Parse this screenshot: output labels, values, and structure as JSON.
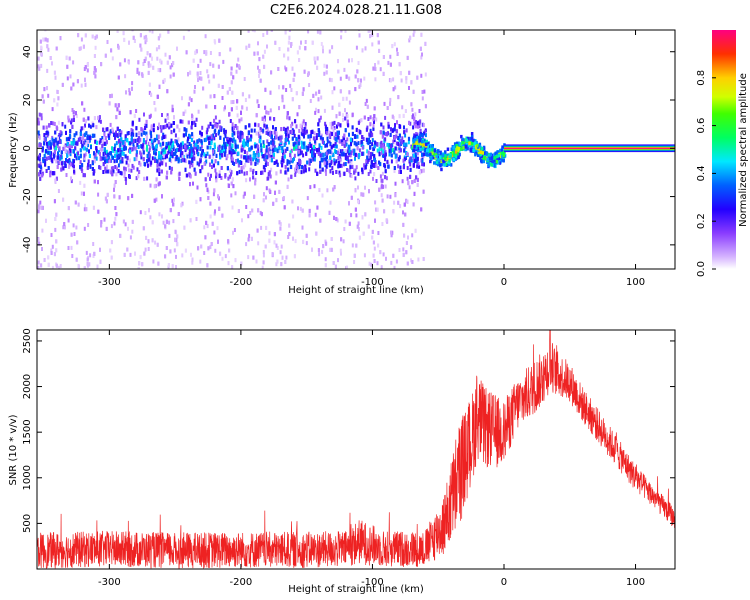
{
  "title": "C2E6.2024.028.21.11.G08",
  "chart_data": [
    {
      "type": "heatmap",
      "xlabel": "Height of straight line (km)",
      "ylabel": "Frequency (Hz)",
      "xlim": [
        -355,
        130
      ],
      "ylim": [
        -50,
        49
      ],
      "x_ticks": [
        -300,
        -200,
        -100,
        0,
        100
      ],
      "y_ticks": [
        -40,
        -20,
        0,
        20,
        40
      ],
      "colorbar": {
        "label": "Normalized spectral amplitude",
        "range": [
          0,
          1
        ],
        "ticks": [
          "0.0",
          "0.2",
          "0.4",
          "0.6",
          "0.8"
        ]
      },
      "colormap": [
        "#ffffff",
        "#b06cff",
        "#2c00ff",
        "#0057ff",
        "#00e5ff",
        "#00ff3c",
        "#c8ff00",
        "#ffd000",
        "#ff2a00",
        "#ff007f"
      ],
      "regions": [
        {
          "x": [
            -355,
            -60
          ],
          "pattern": "noisy broadband",
          "core_half_width_hz": 10,
          "scatter_half_width_hz": 50,
          "peak_amplitude": 0.4
        },
        {
          "x": [
            -70,
            0
          ],
          "pattern": "wavy narrow line",
          "center_hz": [
            -5,
            2
          ],
          "peak_amplitude": 0.85
        },
        {
          "x": [
            0,
            130
          ],
          "pattern": "steady narrow line",
          "center_hz": 0,
          "peak_amplitude": 1.0
        }
      ]
    },
    {
      "type": "line",
      "xlabel": "Height of straight line (km)",
      "ylabel": "SNR (10 * v/v)",
      "xlim": [
        -355,
        130
      ],
      "ylim": [
        0,
        2620
      ],
      "x_ticks": [
        -300,
        -200,
        -100,
        0,
        100
      ],
      "y_ticks": [
        500,
        1000,
        1500,
        2000,
        2500
      ],
      "series": [
        {
          "color": "#ee2222",
          "x": [
            -355,
            -300,
            -250,
            -200,
            -150,
            -120,
            -110,
            -90,
            -60,
            -45,
            -35,
            -25,
            -20,
            -15,
            -5,
            0,
            10,
            20,
            30,
            35,
            40,
            50,
            60,
            80,
            100,
            110,
            120,
            130
          ],
          "y": [
            200,
            220,
            200,
            210,
            210,
            220,
            300,
            220,
            220,
            500,
            1000,
            1400,
            1700,
            1550,
            1500,
            1500,
            1800,
            1950,
            2100,
            2250,
            2150,
            2050,
            1800,
            1400,
            1000,
            850,
            700,
            550
          ],
          "noise_amplitude": [
            200,
            200,
            200,
            200,
            200,
            200,
            250,
            200,
            200,
            350,
            600,
            500,
            500,
            450,
            400,
            350,
            300,
            300,
            300,
            300,
            250,
            220,
            200,
            180,
            150,
            130,
            120,
            120
          ],
          "peak": {
            "x": 35,
            "y": 2620
          }
        }
      ]
    }
  ]
}
